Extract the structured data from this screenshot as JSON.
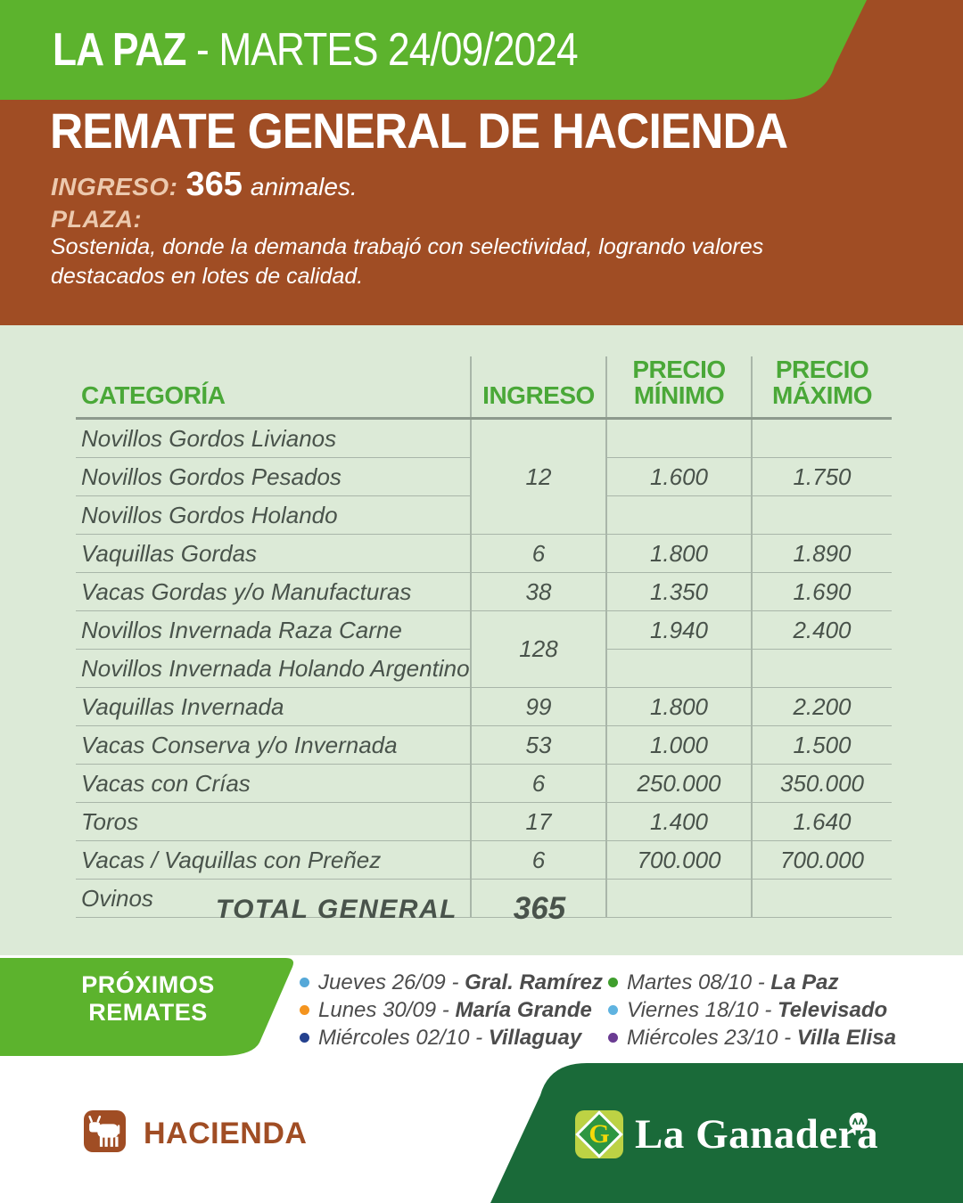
{
  "colors": {
    "bright_green": "#5cb32d",
    "brown": "#a04d24",
    "light_green": "#dcead7",
    "header_green": "#4aa838",
    "dark_text": "#49534b",
    "footer_green": "#1a6a39",
    "beige": "#ecc9ae"
  },
  "top": {
    "location": "LA PAZ",
    "separator": " - ",
    "date": "MARTES 24/09/2024",
    "title": "REMATE GENERAL DE HACIENDA",
    "ingreso_label": "INGRESO:",
    "ingreso_value": "365",
    "ingreso_suffix": "animales.",
    "plaza_label": "PLAZA:",
    "plaza_text": "Sostenida, donde la demanda trabajó con selectividad, logrando valores destacados en lotes de calidad."
  },
  "table": {
    "columns": [
      "CATEGORÍA",
      "INGRESO",
      "PRECIO MÍNIMO",
      "PRECIO MÁXIMO"
    ],
    "rows": [
      {
        "category": "Novillos Gordos Livianos",
        "ingreso": "12",
        "ingreso_span": 3,
        "min": "",
        "max": ""
      },
      {
        "category": "Novillos Gordos Pesados",
        "min": "1.600",
        "max": "1.750"
      },
      {
        "category": "Novillos Gordos Holando",
        "min": "",
        "max": ""
      },
      {
        "category": "Vaquillas Gordas",
        "ingreso": "6",
        "ingreso_span": 1,
        "min": "1.800",
        "max": "1.890"
      },
      {
        "category": "Vacas Gordas y/o Manufacturas",
        "ingreso": "38",
        "ingreso_span": 1,
        "min": "1.350",
        "max": "1.690"
      },
      {
        "category": "Novillos Invernada Raza Carne",
        "ingreso": "128",
        "ingreso_span": 2,
        "min": "1.940",
        "max": "2.400"
      },
      {
        "category": "Novillos Invernada Holando Argentino",
        "min": "",
        "max": ""
      },
      {
        "category": "Vaquillas Invernada",
        "ingreso": "99",
        "ingreso_span": 1,
        "min": "1.800",
        "max": "2.200"
      },
      {
        "category": "Vacas Conserva y/o Invernada",
        "ingreso": "53",
        "ingreso_span": 1,
        "min": "1.000",
        "max": "1.500"
      },
      {
        "category": "Vacas con Crías",
        "ingreso": "6",
        "ingreso_span": 1,
        "min": "250.000",
        "max": "350.000"
      },
      {
        "category": "Toros",
        "ingreso": "17",
        "ingreso_span": 1,
        "min": "1.400",
        "max": "1.640"
      },
      {
        "category": "Vacas / Vaquillas con Preñez",
        "ingreso": "6",
        "ingreso_span": 1,
        "min": "700.000",
        "max": "700.000"
      },
      {
        "category": "Ovinos",
        "ingreso": "",
        "ingreso_span": 1,
        "min": "",
        "max": ""
      }
    ],
    "total_label": "TOTAL GENERAL",
    "total_value": "365"
  },
  "upcoming": {
    "banner_line1": "PRÓXIMOS",
    "banner_line2": "REMATES",
    "separator": " - ",
    "items": [
      {
        "date": "Jueves 26/09",
        "place": "Gral. Ramírez",
        "bullet_color": "#55a8d8",
        "column": 1
      },
      {
        "date": "Lunes 30/09",
        "place": "María Grande",
        "bullet_color": "#f4941f",
        "column": 1
      },
      {
        "date": "Miércoles 02/10",
        "place": "Villaguay",
        "bullet_color": "#24418e",
        "column": 1
      },
      {
        "date": "Martes 08/10",
        "place": "La Paz",
        "bullet_color": "#3f9e2d",
        "column": 2
      },
      {
        "date": "Viernes 18/10",
        "place": "Televisado",
        "bullet_color": "#5fb3e0",
        "column": 2
      },
      {
        "date": "Miércoles 23/10",
        "place": "Villa Elisa",
        "bullet_color": "#6a3b92",
        "column": 2
      }
    ]
  },
  "footer": {
    "hacienda_label": "HACIENDA",
    "brand_name": "La Ganadera",
    "brand_initial": "G"
  }
}
